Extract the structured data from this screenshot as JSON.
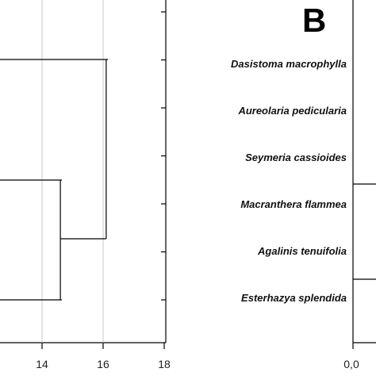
{
  "chart_data": [
    {
      "type": "dendrogram",
      "panel": "A",
      "orientation": "horizontal",
      "xlim": [
        10,
        18
      ],
      "x_ticks": [
        "14",
        "16",
        "18"
      ],
      "grid": true,
      "merge_heights": [
        14.6,
        16.1
      ]
    },
    {
      "type": "dendrogram",
      "panel": "B",
      "panel_label": "B",
      "orientation": "horizontal",
      "leaves": [
        "Dasistoma macrophylla",
        "Aureolaria pedicularia",
        "Seymeria cassioides",
        "Macranthera flammea",
        "Agalinis tenuifolia",
        "Esterhazya splendida"
      ],
      "x_ticks": [
        "0,0"
      ],
      "grid": false
    }
  ]
}
